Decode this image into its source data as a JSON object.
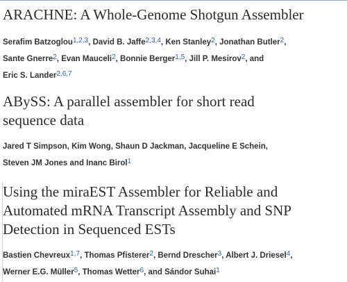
{
  "articles": [
    {
      "title": "ARACHNE: A Whole-Genome Shotgun Assembler",
      "authors": [
        {
          "name": "Serafim Batzoglou",
          "aff": [
            "1",
            "2",
            "3"
          ]
        },
        {
          "name": "David B. Jaffe",
          "aff": [
            "2",
            "3",
            "4"
          ]
        },
        {
          "name": "Ken Stanley",
          "aff": [
            "2"
          ]
        },
        {
          "name": "Jonathan Butler",
          "aff": [
            "2"
          ]
        },
        {
          "name": "Sante Gnerre",
          "aff": [
            "2"
          ]
        },
        {
          "name": "Evan Mauceli",
          "aff": [
            "2"
          ]
        },
        {
          "name": "Bonnie Berger",
          "aff": [
            "1",
            "5"
          ]
        },
        {
          "name": "Jill P. Mesirov",
          "aff": [
            "2"
          ]
        },
        {
          "name": "Eric S. Lander",
          "aff": [
            "2",
            "6",
            "7"
          ]
        }
      ]
    },
    {
      "title": "ABySS: A parallel assembler for short read sequence data",
      "authors": [
        {
          "name": "Jared T Simpson",
          "aff": []
        },
        {
          "name": "Kim Wong",
          "aff": []
        },
        {
          "name": "Shaun D Jackman",
          "aff": []
        },
        {
          "name": "Jacqueline E Schein",
          "aff": []
        },
        {
          "name": "Steven JM Jones",
          "aff": []
        },
        {
          "name": "Inanc Birol",
          "aff": [
            "1"
          ]
        }
      ]
    },
    {
      "title": "Using the miraEST Assembler for Reliable and Automated mRNA Transcript Assembly and SNP Detection in Sequenced ESTs",
      "authors": [
        {
          "name": "Bastien Chevreux",
          "aff": [
            "1",
            "7"
          ]
        },
        {
          "name": "Thomas Pfisterer",
          "aff": [
            "2"
          ]
        },
        {
          "name": "Bernd Drescher",
          "aff": [
            "3"
          ]
        },
        {
          "name": "Albert J. Driesel",
          "aff": [
            "4"
          ]
        },
        {
          "name": "Werner E.G. Müller",
          "aff": [
            "5"
          ]
        },
        {
          "name": "Thomas Wetter",
          "aff": [
            "6"
          ]
        },
        {
          "name": "Sándor Suhai",
          "aff": [
            "1"
          ]
        }
      ]
    }
  ]
}
